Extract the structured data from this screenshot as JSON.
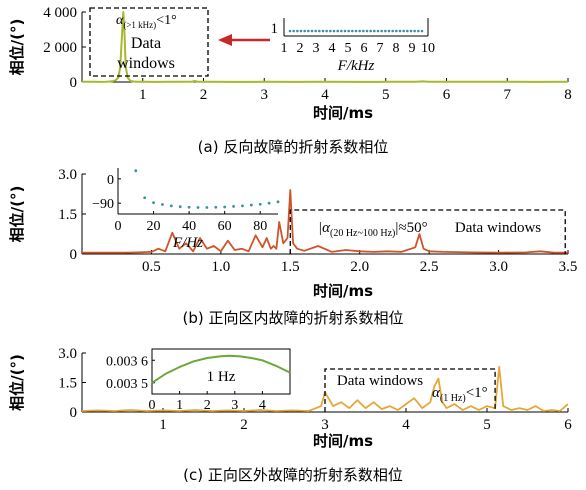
{
  "chart_data": [
    {
      "type": "line",
      "panel": "a",
      "caption": "(a) 反向故障的折射系数相位",
      "xlabel": "时间/ms",
      "ylabel": "相位/(°)",
      "xlim": [
        0,
        8
      ],
      "ylim": [
        0,
        4000
      ],
      "xticks": [
        "1",
        "2",
        "3",
        "4",
        "5",
        "6",
        "7",
        "8"
      ],
      "yticks": [
        "0",
        "2 000",
        "4 000"
      ],
      "color": "#a8b82c",
      "series": [
        {
          "x": [
            0.0,
            0.1,
            0.2,
            0.3,
            0.4,
            0.5,
            0.55,
            0.6,
            0.63,
            0.66,
            0.68,
            0.7,
            0.72,
            0.75,
            0.8,
            0.85,
            0.9,
            1.0,
            1.2,
            1.5,
            1.8,
            1.86,
            1.9,
            2.0,
            2.5,
            3.0,
            3.5,
            4.0,
            4.5,
            5.0,
            5.5,
            5.62,
            5.7,
            6.0,
            6.5,
            7.0,
            7.5,
            8.0
          ],
          "y": [
            15,
            10,
            12,
            8,
            10,
            40,
            90,
            250,
            900,
            2800,
            4000,
            2800,
            900,
            250,
            60,
            30,
            15,
            10,
            8,
            10,
            15,
            60,
            15,
            10,
            8,
            10,
            8,
            10,
            8,
            10,
            12,
            35,
            12,
            10,
            20,
            10,
            8,
            10
          ]
        }
      ],
      "annotation": {
        "label_prefix": "α",
        "label_sub": "(>1 kHz)",
        "label_suffix": "<1°",
        "box_text": "Data windows",
        "window_ms": [
          0.2,
          2.1
        ]
      },
      "inset": {
        "xlabel": "F/kHz",
        "xticks": [
          "1",
          "2",
          "3",
          "4",
          "5",
          "6",
          "7",
          "8",
          "9",
          "10"
        ],
        "yticks": [
          "1"
        ],
        "xlim": [
          1,
          10
        ],
        "points_y": [
          1,
          1,
          1,
          1,
          1,
          1,
          1,
          1,
          1,
          1,
          1,
          1,
          1,
          1,
          1,
          1,
          1,
          1,
          1,
          1,
          1,
          1,
          1,
          1,
          1,
          1,
          1,
          1,
          1,
          1,
          1,
          1,
          1,
          1,
          1,
          1,
          1
        ],
        "color": "#3a8fa0"
      }
    },
    {
      "type": "line",
      "panel": "b",
      "caption": "(b) 正向区内故障的折射系数相位",
      "xlabel": "时间/ms",
      "ylabel": "相位/(°)",
      "xlim": [
        0,
        3.5
      ],
      "ylim": [
        0,
        3.0
      ],
      "xticks": [
        "0.5",
        "1.0",
        "1.5",
        "2.0",
        "2.5",
        "3.0",
        "3.5"
      ],
      "yticks": [
        "0",
        "1.5",
        "3.0"
      ],
      "color": "#d0542a",
      "series": [
        {
          "x": [
            0.0,
            0.1,
            0.2,
            0.3,
            0.4,
            0.5,
            0.55,
            0.6,
            0.65,
            0.7,
            0.75,
            0.8,
            0.85,
            0.9,
            0.95,
            1.0,
            1.05,
            1.1,
            1.15,
            1.2,
            1.25,
            1.3,
            1.33,
            1.36,
            1.38,
            1.4,
            1.42,
            1.45,
            1.48,
            1.5,
            1.52,
            1.55,
            1.6,
            1.7,
            1.8,
            1.9,
            2.0,
            2.1,
            2.2,
            2.3,
            2.4,
            2.43,
            2.46,
            2.5,
            2.6,
            2.8,
            3.0,
            3.2,
            3.3,
            3.4,
            3.45,
            3.5
          ],
          "y": [
            0.05,
            0.05,
            0.05,
            0.05,
            0.06,
            0.08,
            0.2,
            0.1,
            0.8,
            0.2,
            0.4,
            0.1,
            0.6,
            0.2,
            0.3,
            0.1,
            0.5,
            0.15,
            0.2,
            0.1,
            0.7,
            0.25,
            0.6,
            0.2,
            0.3,
            0.2,
            1.2,
            0.4,
            0.6,
            2.4,
            0.4,
            0.2,
            0.12,
            0.3,
            0.08,
            0.15,
            0.1,
            0.08,
            0.1,
            0.08,
            0.25,
            0.75,
            0.2,
            0.1,
            0.08,
            0.06,
            0.05,
            0.06,
            0.1,
            0.05,
            0.05,
            0.05
          ]
        }
      ],
      "annotation": {
        "label_prefix": "|α",
        "label_sub": "(20 Hz~100 Hz)",
        "label_suffix": "|≈50°",
        "box_text": "Data windows",
        "window_ms": [
          1.5,
          3.48
        ]
      },
      "inset": {
        "xlabel": "F/Hz",
        "xticks": [
          "0",
          "20",
          "40",
          "60",
          "80"
        ],
        "yticks": [
          "0",
          "-90"
        ],
        "xlim": [
          0,
          90
        ],
        "ylim": [
          -130,
          40
        ],
        "points_x": [
          10,
          15,
          20,
          25,
          30,
          35,
          40,
          45,
          50,
          55,
          60,
          65,
          70,
          75,
          80,
          85,
          90
        ],
        "points_y": [
          30,
          -70,
          -88,
          -95,
          -100,
          -103,
          -105,
          -106,
          -106,
          -105,
          -104,
          -102,
          -100,
          -97,
          -94,
          -90,
          -85
        ],
        "color": "#3a8fa0"
      }
    },
    {
      "type": "line",
      "panel": "c",
      "caption": "(c) 正向区外故障的折射系数相位",
      "xlabel": "时间/ms",
      "ylabel": "相位/(°)",
      "xlim": [
        0,
        6
      ],
      "ylim": [
        0,
        3.0
      ],
      "xticks": [
        "1",
        "2",
        "3",
        "4",
        "5",
        "6"
      ],
      "yticks": [
        "0",
        "1.5",
        "3.0"
      ],
      "color": "#e4a83a",
      "series": [
        {
          "x": [
            0.0,
            0.2,
            0.4,
            0.6,
            0.8,
            1.0,
            1.2,
            1.4,
            1.6,
            1.8,
            2.0,
            2.2,
            2.4,
            2.6,
            2.8,
            2.95,
            3.0,
            3.1,
            3.2,
            3.3,
            3.4,
            3.5,
            3.6,
            3.7,
            3.8,
            3.9,
            4.0,
            4.1,
            4.2,
            4.3,
            4.35,
            4.4,
            4.45,
            4.5,
            4.6,
            4.7,
            4.8,
            4.9,
            5.0,
            5.1,
            5.15,
            5.2,
            5.3,
            5.4,
            5.5,
            5.6,
            5.7,
            5.8,
            5.9,
            6.0
          ],
          "y": [
            0.05,
            0.08,
            0.05,
            0.1,
            0.05,
            0.08,
            0.05,
            0.1,
            0.05,
            0.08,
            0.05,
            0.1,
            0.05,
            0.08,
            0.05,
            0.3,
            1.0,
            0.3,
            0.5,
            0.2,
            0.6,
            0.2,
            0.5,
            0.15,
            0.3,
            0.1,
            0.4,
            0.7,
            0.2,
            0.5,
            1.3,
            1.7,
            0.5,
            0.2,
            0.4,
            0.1,
            0.3,
            0.1,
            0.3,
            0.2,
            2.3,
            0.3,
            0.1,
            0.2,
            0.1,
            0.3,
            0.05,
            0.1,
            0.05,
            0.4
          ]
        }
      ],
      "annotation": {
        "label_prefix": "α",
        "label_sub": "(1 Hz)",
        "label_suffix": "<1°",
        "box_text": "Data windows",
        "window_ms": [
          3.0,
          5.1
        ]
      },
      "inset": {
        "xlabel": "",
        "label": "1 Hz",
        "xticks": [
          "0",
          "1",
          "2",
          "3",
          "4"
        ],
        "yticks": [
          "0.003 5",
          "0.003 6"
        ],
        "xlim": [
          0,
          5
        ],
        "ylim": [
          0.00345,
          0.00365
        ],
        "curve_x": [
          0,
          0.5,
          1,
          1.5,
          2,
          2.5,
          2.8,
          3.2,
          3.6,
          4,
          4.5,
          5
        ],
        "curve_y": [
          0.0035,
          0.00354,
          0.00357,
          0.003595,
          0.00361,
          0.003618,
          0.00362,
          0.003617,
          0.00361,
          0.0036,
          0.003575,
          0.003545
        ],
        "color": "#6aa83a"
      }
    }
  ],
  "arrow_color": "#c82828"
}
